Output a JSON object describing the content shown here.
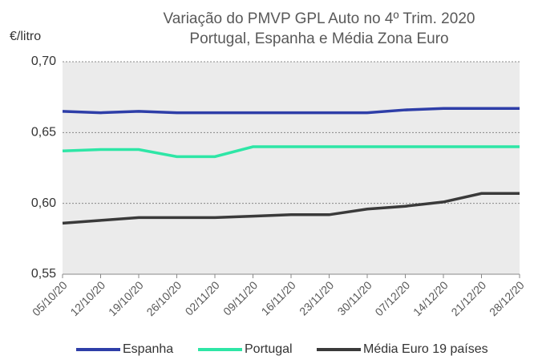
{
  "chart_data": {
    "type": "line",
    "title": "Variação do PMVP GPL Auto no 4º Trim. 2020",
    "subtitle": "Portugal, Espanha e Média Zona Euro",
    "y_label": "€/litro",
    "categories": [
      "05/10/20",
      "12/10/20",
      "19/10/20",
      "26/10/20",
      "02/11/20",
      "09/11/20",
      "16/11/20",
      "23/11/20",
      "30/11/20",
      "07/12/20",
      "14/12/20",
      "21/12/20",
      "28/12/20"
    ],
    "series": [
      {
        "name": "Espanha",
        "color": "#2e3ea8",
        "values": [
          0.665,
          0.664,
          0.665,
          0.664,
          0.664,
          0.664,
          0.664,
          0.664,
          0.664,
          0.666,
          0.667,
          0.667,
          0.667
        ]
      },
      {
        "name": "Portugal",
        "color": "#2ee6a6",
        "values": [
          0.637,
          0.638,
          0.638,
          0.633,
          0.633,
          0.64,
          0.64,
          0.64,
          0.64,
          0.64,
          0.64,
          0.64,
          0.64
        ]
      },
      {
        "name": "Média Euro 19 países",
        "color": "#3a3a3a",
        "values": [
          0.586,
          0.588,
          0.59,
          0.59,
          0.59,
          0.591,
          0.592,
          0.592,
          0.596,
          0.598,
          0.601,
          0.607,
          0.607
        ]
      }
    ],
    "ylim": [
      0.55,
      0.7
    ],
    "yticks": [
      {
        "value": 0.55,
        "label": "0,55"
      },
      {
        "value": 0.6,
        "label": "0,60"
      },
      {
        "value": 0.65,
        "label": "0,65"
      },
      {
        "value": 0.7,
        "label": "0,70"
      }
    ],
    "grid": true,
    "legend": "bottom"
  }
}
